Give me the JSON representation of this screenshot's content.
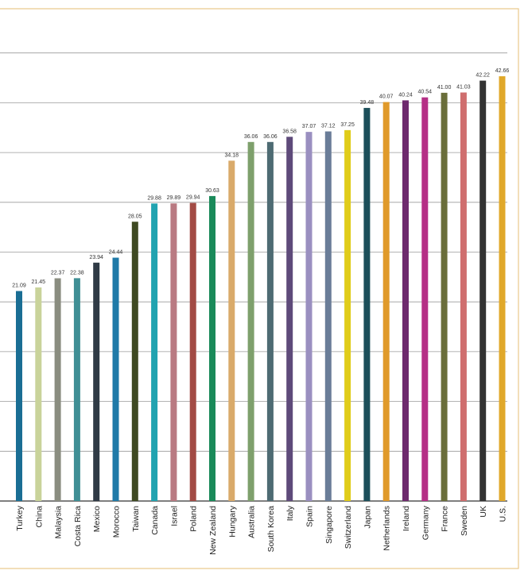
{
  "chart_data": {
    "type": "bar",
    "title": "",
    "xlabel": "",
    "ylabel": "",
    "ylim": [
      0,
      50
    ],
    "grid": true,
    "gridline_step": 5,
    "categories": [
      "Turkey",
      "China",
      "Malaysia",
      "Costa Rica",
      "Mexico",
      "Morocco",
      "Taiwan",
      "Canada",
      "Israel",
      "Poland",
      "New Zealand",
      "Hungary",
      "Australia",
      "South Korea",
      "Italy",
      "Spain",
      "Singapore",
      "Switzerland",
      "Japan",
      "Netherlands",
      "Ireland",
      "Germany",
      "France",
      "Sweden",
      "UK",
      "U.S."
    ],
    "values": [
      21.09,
      21.45,
      22.37,
      22.38,
      23.94,
      24.44,
      28.05,
      29.88,
      29.89,
      29.94,
      30.63,
      34.18,
      36.06,
      36.06,
      36.58,
      37.07,
      37.12,
      37.25,
      39.48,
      40.07,
      40.24,
      40.54,
      41.0,
      41.03,
      42.22,
      42.66
    ],
    "value_labels": [
      "21.09",
      "21.45",
      "22.37",
      "22.38",
      "23.94",
      "24.44",
      "28.05",
      "29.88",
      "29.89",
      "29.94",
      "30.63",
      "34.18",
      "36.06",
      "36.06",
      "36.58",
      "37.07",
      "37.12",
      "37.25",
      "39.48",
      "40.07",
      "40.24",
      "40.54",
      "41.00",
      "41.03",
      "42.22",
      "42.66"
    ],
    "colors": [
      "#1a6e94",
      "#c9d39a",
      "#8a8d80",
      "#3f8f95",
      "#2f3a45",
      "#1f7aa8",
      "#3f4a22",
      "#21a3b0",
      "#b97a82",
      "#a24b45",
      "#1a8a5a",
      "#d9aa6a",
      "#7ea06c",
      "#4e6b73",
      "#5e4a7a",
      "#9a8fc0",
      "#6a7d98",
      "#e0cc1a",
      "#1c4f5a",
      "#e09a2a",
      "#6e2a6e",
      "#b52f86",
      "#6a6e3a",
      "#cf6e6e",
      "#333333",
      "#e0a82a"
    ],
    "frame_color": "#e8c88a",
    "grid_color": "#9a9a9a"
  }
}
